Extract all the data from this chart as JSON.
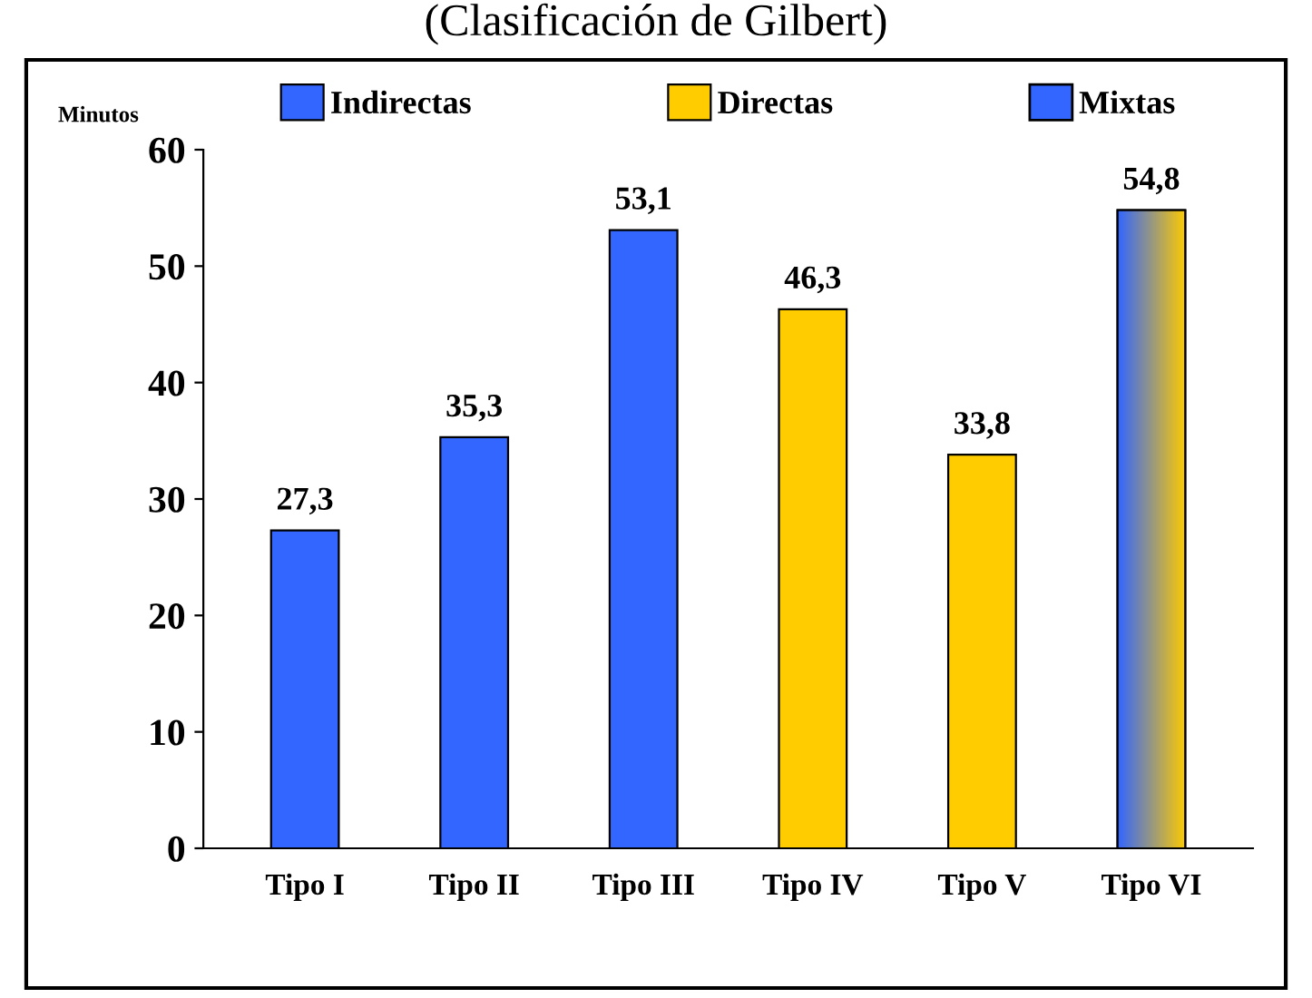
{
  "chart_data": {
    "type": "bar",
    "title": "(Clasificación de Gilbert)",
    "ylabel": "Minutos",
    "categories": [
      "Tipo I",
      "Tipo II",
      "Tipo III",
      "Tipo IV",
      "Tipo V",
      "Tipo VI"
    ],
    "series": [
      {
        "name": "Indirectas",
        "color": "#3366ff",
        "values": [
          27.3,
          35.3,
          53.1,
          null,
          null,
          null
        ]
      },
      {
        "name": "Directas",
        "color": "#ffcc00",
        "values": [
          null,
          null,
          null,
          46.3,
          33.8,
          null
        ]
      },
      {
        "name": "Mixtas",
        "color": "#3366ff",
        "values": [
          null,
          null,
          null,
          null,
          null,
          54.8
        ]
      }
    ],
    "value_labels": [
      "27,3",
      "35,3",
      "53,1",
      "46,3",
      "33,8",
      "54,8"
    ],
    "ylim": [
      0,
      60
    ],
    "yticks": [
      0,
      10,
      20,
      30,
      40,
      50,
      60
    ],
    "grid": false,
    "legend": "top"
  }
}
